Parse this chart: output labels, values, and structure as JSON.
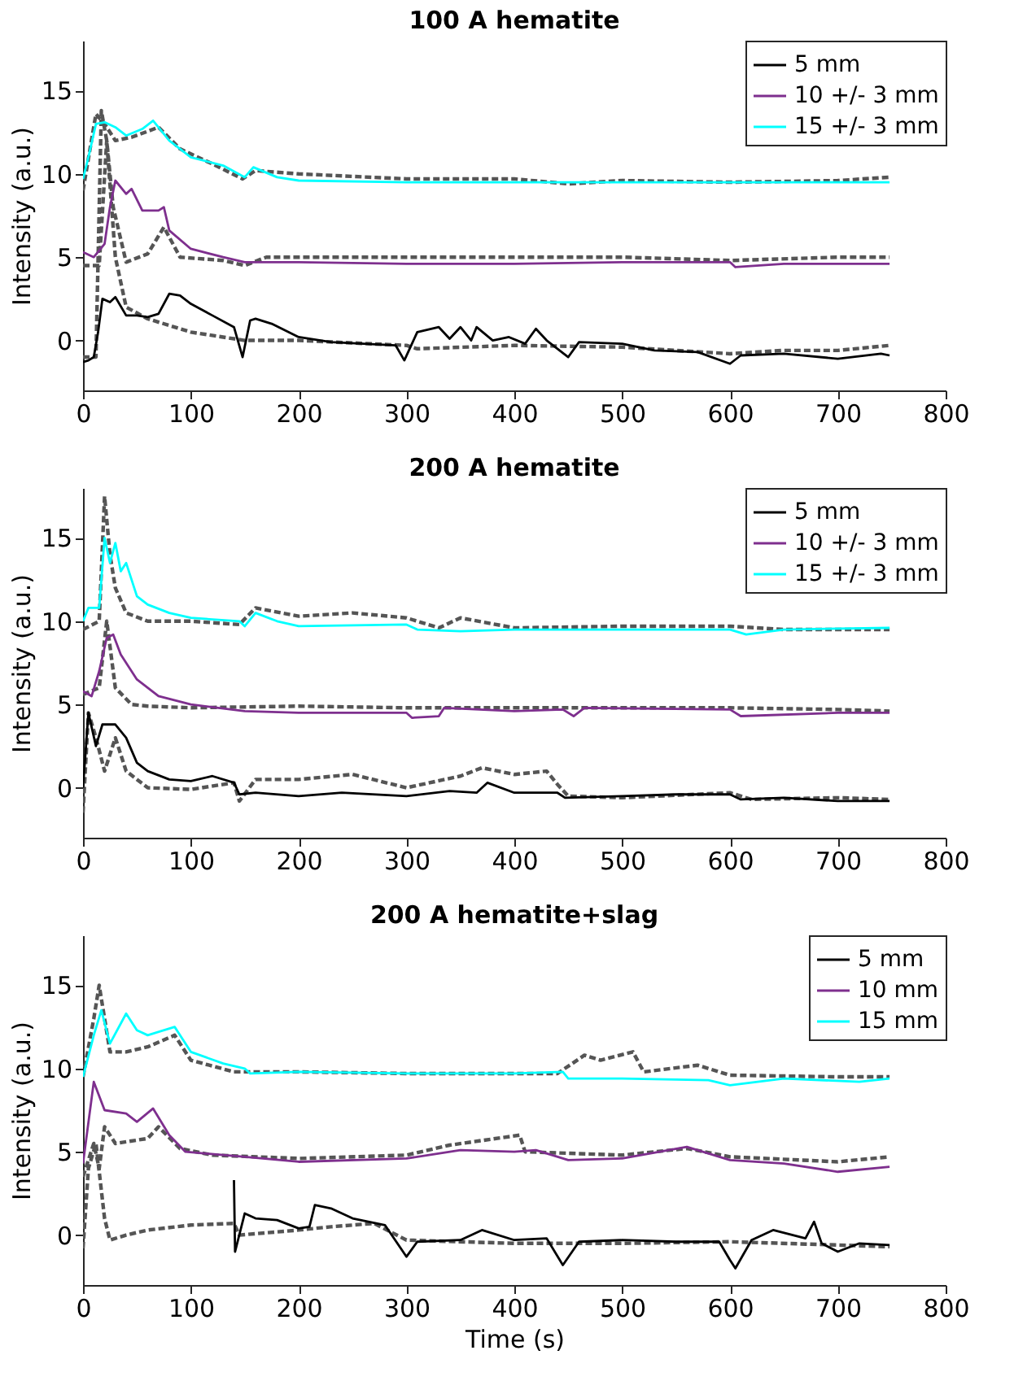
{
  "chart_data": [
    {
      "type": "line",
      "title": "100 A hematite",
      "ylabel": "Intensity (a.u.)",
      "xlim": [
        0,
        800
      ],
      "xticks": [
        0,
        100,
        200,
        300,
        400,
        500,
        600,
        700,
        800
      ],
      "ylim": [
        -3,
        18
      ],
      "yticks": [
        0,
        5,
        10,
        15
      ],
      "grid": false,
      "legend": "top right",
      "series": [
        {
          "color": "#555555",
          "line_style": "dashed",
          "x": [
            0,
            12,
            17,
            22,
            30,
            40,
            60,
            100,
            150,
            200,
            300,
            310,
            400,
            500,
            600,
            650,
            700,
            748
          ],
          "values": [
            -1,
            -1,
            13.8,
            12,
            5,
            2,
            1.3,
            0.5,
            0,
            0,
            -0.3,
            -0.5,
            -0.3,
            -0.4,
            -0.8,
            -0.6,
            -0.6,
            -0.3
          ]
        },
        {
          "color": "#555555",
          "line_style": "dashed",
          "x": [
            0,
            15,
            22,
            28,
            40,
            60,
            75,
            90,
            130,
            150,
            170,
            300,
            400,
            500,
            600,
            700,
            748
          ],
          "values": [
            4.5,
            4.5,
            12,
            8,
            4.7,
            5.2,
            6.8,
            5,
            4.8,
            4.5,
            5,
            5,
            5,
            5,
            4.8,
            5,
            5
          ]
        },
        {
          "color": "#555555",
          "line_style": "dashed",
          "x": [
            0,
            12,
            20,
            30,
            45,
            70,
            90,
            120,
            148,
            160,
            200,
            300,
            400,
            450,
            500,
            600,
            700,
            748
          ],
          "values": [
            9,
            13.6,
            13,
            12,
            12.2,
            12.8,
            11.5,
            10.6,
            9.7,
            10.2,
            10,
            9.7,
            9.7,
            9.4,
            9.6,
            9.5,
            9.6,
            9.8
          ]
        },
        {
          "name": "5 mm",
          "color": "#000000",
          "line_style": "solid",
          "x": [
            0,
            5,
            10,
            14,
            18,
            25,
            30,
            40,
            50,
            60,
            70,
            80,
            90,
            100,
            120,
            140,
            148,
            155,
            160,
            175,
            200,
            230,
            260,
            290,
            298,
            310,
            330,
            340,
            350,
            360,
            365,
            380,
            395,
            410,
            420,
            430,
            450,
            460,
            500,
            530,
            570,
            600,
            610,
            650,
            700,
            740,
            748
          ],
          "values": [
            -1.3,
            -1.2,
            -1,
            0.5,
            2.5,
            2.3,
            2.6,
            1.5,
            1.5,
            1.4,
            1.6,
            2.8,
            2.7,
            2.2,
            1.5,
            0.8,
            -1,
            1.2,
            1.3,
            1,
            0.2,
            -0.1,
            -0.2,
            -0.3,
            -1.2,
            0.5,
            0.8,
            0.1,
            0.8,
            0,
            0.8,
            0,
            0.2,
            -0.2,
            0.7,
            0,
            -1,
            -0.1,
            -0.2,
            -0.6,
            -0.7,
            -1.4,
            -0.9,
            -0.8,
            -1.1,
            -0.8,
            -0.9
          ]
        },
        {
          "name": "10 +/- 3 mm",
          "color": "#7e2f8e",
          "line_style": "solid",
          "x": [
            0,
            10,
            20,
            25,
            30,
            40,
            45,
            55,
            70,
            75,
            80,
            100,
            130,
            150,
            200,
            300,
            400,
            500,
            600,
            605,
            650,
            748
          ],
          "values": [
            5.3,
            5,
            5.8,
            8,
            9.6,
            8.8,
            9.1,
            7.8,
            7.8,
            8,
            6.6,
            5.5,
            5,
            4.7,
            4.7,
            4.6,
            4.6,
            4.7,
            4.7,
            4.4,
            4.6,
            4.6
          ]
        },
        {
          "name": "15 +/- 3 mm",
          "color": "#00ffff",
          "line_style": "solid",
          "x": [
            0,
            5,
            12,
            20,
            30,
            40,
            55,
            65,
            80,
            100,
            130,
            150,
            158,
            180,
            200,
            300,
            400,
            500,
            748
          ],
          "values": [
            9.7,
            11,
            13,
            13.1,
            12.8,
            12.3,
            12.7,
            13.2,
            12,
            11,
            10.5,
            9.8,
            10.4,
            9.8,
            9.6,
            9.5,
            9.5,
            9.5,
            9.5
          ]
        }
      ]
    },
    {
      "type": "line",
      "title": "200 A hematite",
      "ylabel": "Intensity (a.u.)",
      "xlim": [
        0,
        800
      ],
      "xticks": [
        0,
        100,
        200,
        300,
        400,
        500,
        600,
        700,
        800
      ],
      "ylim": [
        -3,
        18
      ],
      "yticks": [
        0,
        5,
        10,
        15
      ],
      "grid": false,
      "legend": "top right",
      "series": [
        {
          "color": "#555555",
          "line_style": "dashed",
          "x": [
            0,
            5,
            12,
            20,
            30,
            40,
            60,
            100,
            140,
            145,
            160,
            200,
            250,
            300,
            350,
            370,
            400,
            430,
            440,
            450,
            500,
            600,
            620,
            700,
            748
          ],
          "values": [
            -1.5,
            4.5,
            3,
            1,
            3,
            1,
            0,
            -0.1,
            0.3,
            -0.8,
            0.5,
            0.5,
            0.8,
            0,
            0.7,
            1.2,
            0.8,
            1,
            0.2,
            -0.5,
            -0.6,
            -0.3,
            -0.7,
            -0.6,
            -0.7
          ]
        },
        {
          "color": "#555555",
          "line_style": "dashed",
          "x": [
            0,
            15,
            22,
            30,
            45,
            60,
            100,
            200,
            300,
            400,
            500,
            600,
            700,
            748
          ],
          "values": [
            5.6,
            6,
            10,
            6,
            5,
            4.9,
            4.8,
            4.9,
            4.8,
            4.8,
            4.8,
            4.8,
            4.7,
            4.6
          ]
        },
        {
          "color": "#555555",
          "line_style": "dashed",
          "x": [
            0,
            15,
            20,
            25,
            30,
            40,
            60,
            100,
            145,
            160,
            200,
            250,
            300,
            330,
            350,
            400,
            500,
            600,
            650,
            748
          ],
          "values": [
            9.5,
            10,
            17.5,
            14,
            12,
            10.5,
            10,
            10,
            9.8,
            10.8,
            10.3,
            10.5,
            10.2,
            9.6,
            10.2,
            9.6,
            9.7,
            9.7,
            9.5,
            9.5
          ]
        },
        {
          "name": "5 mm",
          "color": "#000000",
          "line_style": "solid",
          "x": [
            0,
            5,
            12,
            18,
            30,
            40,
            50,
            60,
            80,
            100,
            120,
            140,
            145,
            160,
            200,
            240,
            300,
            340,
            365,
            375,
            400,
            440,
            447,
            500,
            550,
            600,
            610,
            650,
            700,
            748
          ],
          "values": [
            0,
            4.5,
            2.5,
            3.8,
            3.8,
            3,
            1.5,
            1,
            0.5,
            0.4,
            0.7,
            0.3,
            -0.4,
            -0.3,
            -0.5,
            -0.3,
            -0.5,
            -0.2,
            -0.3,
            0.3,
            -0.3,
            -0.3,
            -0.6,
            -0.5,
            -0.4,
            -0.4,
            -0.7,
            -0.6,
            -0.8,
            -0.8
          ]
        },
        {
          "name": "10 +/- 3 mm",
          "color": "#7e2f8e",
          "line_style": "solid",
          "x": [
            0,
            8,
            15,
            22,
            28,
            35,
            50,
            70,
            100,
            150,
            200,
            300,
            305,
            330,
            335,
            400,
            445,
            455,
            465,
            600,
            610,
            700,
            748
          ],
          "values": [
            5.8,
            5.5,
            7,
            9,
            9.2,
            8,
            6.5,
            5.5,
            5,
            4.6,
            4.5,
            4.5,
            4.2,
            4.3,
            4.8,
            4.6,
            4.7,
            4.3,
            4.8,
            4.7,
            4.3,
            4.5,
            4.5
          ]
        },
        {
          "name": "15 +/- 3 mm",
          "color": "#00ffff",
          "line_style": "solid",
          "x": [
            0,
            5,
            15,
            20,
            25,
            30,
            35,
            40,
            50,
            60,
            80,
            100,
            145,
            150,
            160,
            180,
            200,
            300,
            310,
            350,
            400,
            500,
            600,
            615,
            650,
            748
          ],
          "values": [
            10,
            10.8,
            10.8,
            15,
            13.5,
            14.7,
            13,
            13.5,
            11.5,
            11,
            10.5,
            10.2,
            10,
            9.7,
            10.5,
            10,
            9.7,
            9.8,
            9.5,
            9.4,
            9.5,
            9.5,
            9.5,
            9.2,
            9.5,
            9.6
          ]
        }
      ]
    },
    {
      "type": "line",
      "title": "200 A hematite+slag",
      "xlabel": "Time (s)",
      "ylabel": "Intensity (a.u.)",
      "xlim": [
        0,
        800
      ],
      "xticks": [
        0,
        100,
        200,
        300,
        400,
        500,
        600,
        700,
        800
      ],
      "ylim": [
        -3,
        18
      ],
      "yticks": [
        0,
        5,
        10,
        15
      ],
      "grid": false,
      "legend": "top right",
      "series": [
        {
          "color": "#555555",
          "line_style": "dashed",
          "x": [
            0,
            5,
            12,
            20,
            25,
            40,
            60,
            100,
            140,
            145,
            200,
            230,
            270,
            300,
            400,
            500,
            600,
            700,
            748
          ],
          "values": [
            -0.8,
            4,
            5.5,
            1,
            -0.3,
            0,
            0.3,
            0.6,
            0.7,
            0,
            0.3,
            0.5,
            0.7,
            -0.3,
            -0.5,
            -0.5,
            -0.4,
            -0.6,
            -0.7
          ]
        },
        {
          "color": "#555555",
          "line_style": "dashed",
          "x": [
            0,
            10,
            15,
            20,
            30,
            60,
            70,
            90,
            120,
            200,
            300,
            340,
            405,
            410,
            500,
            560,
            600,
            700,
            748
          ],
          "values": [
            3.5,
            5.5,
            4,
            6.5,
            5.5,
            5.8,
            6.5,
            5.2,
            4.8,
            4.6,
            4.8,
            5.4,
            6,
            5,
            4.8,
            5.2,
            4.7,
            4.4,
            4.7
          ]
        },
        {
          "color": "#555555",
          "line_style": "dashed",
          "x": [
            0,
            10,
            15,
            25,
            40,
            60,
            85,
            100,
            140,
            200,
            300,
            440,
            465,
            480,
            510,
            520,
            570,
            600,
            700,
            748
          ],
          "values": [
            9.5,
            13,
            15,
            11,
            11,
            11.3,
            12,
            10.5,
            9.8,
            9.8,
            9.7,
            9.7,
            10.8,
            10.5,
            11,
            9.8,
            10.2,
            9.6,
            9.5,
            9.5
          ]
        },
        {
          "name": "5 mm",
          "color": "#000000",
          "line_style": "solid",
          "x": [
            140,
            141,
            150,
            160,
            180,
            200,
            210,
            215,
            230,
            250,
            280,
            300,
            310,
            350,
            370,
            400,
            430,
            445,
            460,
            500,
            550,
            590,
            600,
            605,
            620,
            640,
            670,
            678,
            685,
            700,
            720,
            748
          ],
          "values": [
            3.3,
            -1,
            1.3,
            1,
            0.9,
            0.4,
            0.5,
            1.8,
            1.6,
            1,
            0.6,
            -1.3,
            -0.4,
            -0.3,
            0.3,
            -0.3,
            -0.2,
            -1.8,
            -0.4,
            -0.3,
            -0.4,
            -0.4,
            -1.5,
            -2,
            -0.3,
            0.3,
            -0.2,
            0.8,
            -0.5,
            -1,
            -0.5,
            -0.6
          ]
        },
        {
          "name": "10 mm",
          "color": "#7e2f8e",
          "line_style": "solid",
          "x": [
            0,
            10,
            20,
            40,
            50,
            65,
            80,
            95,
            150,
            200,
            300,
            350,
            400,
            420,
            450,
            500,
            560,
            600,
            650,
            700,
            748
          ],
          "values": [
            4.3,
            9.2,
            7.5,
            7.3,
            6.8,
            7.6,
            6,
            5,
            4.7,
            4.4,
            4.6,
            5.1,
            5,
            5.1,
            4.5,
            4.6,
            5.3,
            4.5,
            4.3,
            3.8,
            4.1
          ]
        },
        {
          "name": "15 mm",
          "color": "#00ffff",
          "line_style": "solid",
          "x": [
            0,
            10,
            17,
            25,
            40,
            50,
            60,
            85,
            100,
            130,
            150,
            155,
            200,
            300,
            400,
            445,
            450,
            500,
            580,
            600,
            650,
            720,
            748
          ],
          "values": [
            9.5,
            12,
            13.5,
            11.5,
            13.3,
            12.3,
            12,
            12.5,
            11,
            10.3,
            10,
            9.7,
            9.8,
            9.7,
            9.7,
            9.8,
            9.4,
            9.4,
            9.3,
            9,
            9.4,
            9.2,
            9.4
          ]
        }
      ]
    }
  ]
}
